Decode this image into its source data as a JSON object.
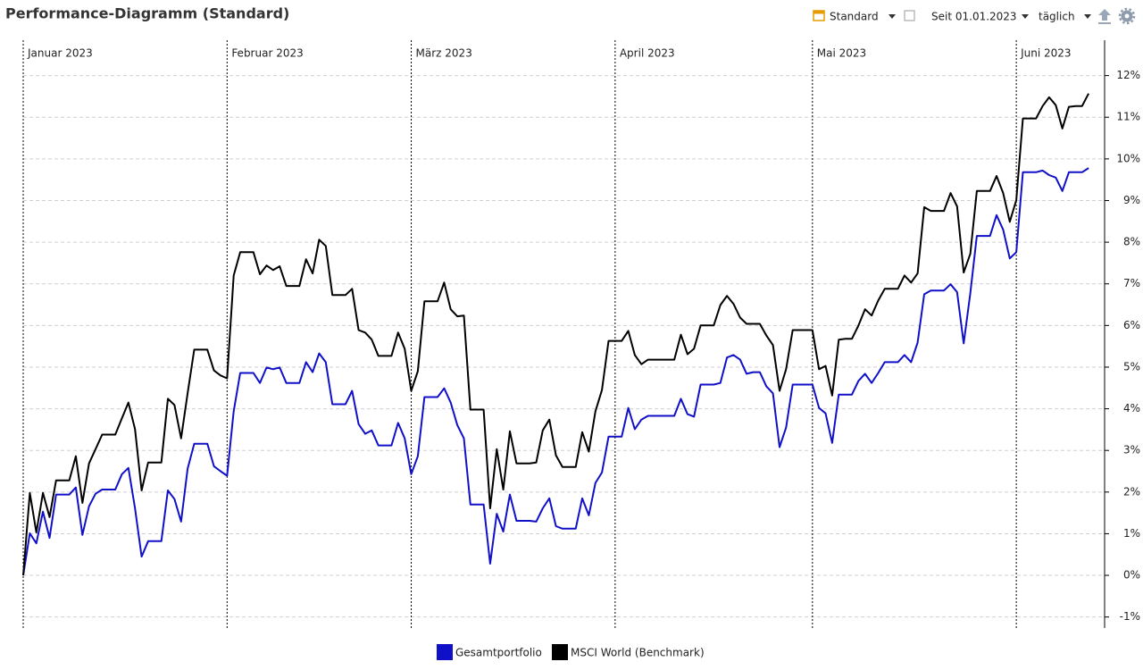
{
  "header": {
    "title": "Performance-Diagramm (Standard)"
  },
  "toolbar": {
    "view": "Standard",
    "period": "Seit 01.01.2023",
    "interval": "täglich"
  },
  "chart_data": {
    "type": "line",
    "categories": [
      "Januar 2023",
      null,
      null,
      null,
      null,
      null,
      null,
      null,
      null,
      null,
      null,
      null,
      null,
      null,
      null,
      null,
      null,
      null,
      null,
      null,
      null,
      null,
      null,
      null,
      null,
      null,
      null,
      null,
      null,
      null,
      null,
      "Februar 2023",
      null,
      null,
      null,
      null,
      null,
      null,
      null,
      null,
      null,
      null,
      null,
      null,
      null,
      null,
      null,
      null,
      null,
      null,
      null,
      null,
      null,
      null,
      null,
      null,
      null,
      null,
      null,
      "März 2023",
      null,
      null,
      null,
      null,
      null,
      null,
      null,
      null,
      null,
      null,
      null,
      null,
      null,
      null,
      null,
      null,
      null,
      null,
      null,
      null,
      null,
      null,
      null,
      null,
      null,
      null,
      null,
      null,
      null,
      null,
      "April 2023",
      null,
      null,
      null,
      null,
      null,
      null,
      null,
      null,
      null,
      null,
      null,
      null,
      null,
      null,
      null,
      null,
      null,
      null,
      null,
      null,
      null,
      null,
      null,
      null,
      null,
      null,
      null,
      null,
      null,
      "Mai 2023",
      null,
      null,
      null,
      null,
      null,
      null,
      null,
      null,
      null,
      null,
      null,
      null,
      null,
      null,
      null,
      null,
      null,
      null,
      null,
      null,
      null,
      null,
      null,
      null,
      null,
      null,
      null,
      null,
      null,
      null,
      "Juni 2023",
      null,
      null,
      null,
      null,
      null,
      null,
      null,
      null,
      null,
      null,
      null
    ],
    "series": [
      {
        "name": "Gesamtportfolio",
        "color": "#1010c8",
        "values": [
          0,
          1.01,
          0.77,
          1.53,
          0.9,
          1.94,
          1.94,
          1.94,
          2.11,
          0.97,
          1.66,
          1.96,
          2.06,
          2.06,
          2.06,
          2.43,
          2.58,
          1.61,
          0.45,
          0.82,
          0.82,
          0.82,
          2.04,
          1.83,
          1.29,
          2.56,
          3.16,
          3.16,
          3.16,
          2.62,
          2.5,
          2.39,
          3.94,
          4.86,
          4.86,
          4.86,
          4.62,
          4.99,
          4.95,
          4.99,
          4.62,
          4.62,
          4.62,
          5.12,
          4.88,
          5.33,
          5.12,
          4.11,
          4.11,
          4.11,
          4.43,
          3.63,
          3.4,
          3.48,
          3.12,
          3.12,
          3.12,
          3.66,
          3.29,
          2.43,
          2.86,
          4.28,
          4.28,
          4.28,
          4.49,
          4.15,
          3.61,
          3.29,
          1.7,
          1.7,
          1.7,
          0.28,
          1.48,
          1.05,
          1.94,
          1.31,
          1.31,
          1.31,
          1.29,
          1.61,
          1.85,
          1.18,
          1.12,
          1.12,
          1.12,
          1.85,
          1.44,
          2.22,
          2.47,
          3.33,
          3.33,
          3.33,
          4.02,
          3.51,
          3.74,
          3.83,
          3.83,
          3.83,
          3.83,
          3.83,
          4.24,
          3.87,
          3.81,
          4.58,
          4.58,
          4.58,
          4.62,
          5.23,
          5.29,
          5.18,
          4.84,
          4.88,
          4.88,
          4.54,
          4.37,
          3.08,
          3.55,
          4.58,
          4.58,
          4.58,
          4.58,
          4.02,
          3.89,
          3.18,
          4.34,
          4.34,
          4.34,
          4.67,
          4.84,
          4.62,
          4.86,
          5.12,
          5.12,
          5.12,
          5.29,
          5.12,
          5.59,
          6.75,
          6.84,
          6.84,
          6.84,
          6.99,
          6.8,
          5.57,
          6.77,
          8.15,
          8.15,
          8.15,
          8.65,
          8.3,
          7.61,
          7.76,
          9.68,
          9.68,
          9.68,
          9.72,
          9.61,
          9.55,
          9.23,
          9.68,
          9.68,
          9.68,
          9.78
        ]
      },
      {
        "name": "MSCI World (Benchmark)",
        "color": "#000000",
        "values": [
          0,
          1.98,
          1.03,
          1.98,
          1.4,
          2.28,
          2.28,
          2.28,
          2.86,
          1.74,
          2.69,
          3.03,
          3.38,
          3.38,
          3.38,
          3.77,
          4.15,
          3.51,
          2.04,
          2.71,
          2.71,
          2.71,
          4.24,
          4.09,
          3.29,
          4.37,
          5.42,
          5.42,
          5.42,
          4.92,
          4.8,
          4.73,
          7.2,
          7.76,
          7.76,
          7.76,
          7.23,
          7.44,
          7.33,
          7.42,
          6.95,
          6.95,
          6.95,
          7.59,
          7.25,
          8.06,
          7.91,
          6.73,
          6.73,
          6.73,
          6.88,
          5.89,
          5.83,
          5.66,
          5.27,
          5.27,
          5.27,
          5.83,
          5.44,
          4.43,
          4.9,
          6.58,
          6.58,
          6.58,
          7.03,
          6.39,
          6.22,
          6.24,
          3.98,
          3.98,
          3.98,
          1.61,
          3.03,
          2.06,
          3.46,
          2.69,
          2.69,
          2.69,
          2.71,
          3.48,
          3.74,
          2.88,
          2.6,
          2.6,
          2.6,
          3.44,
          2.97,
          3.94,
          4.45,
          5.63,
          5.63,
          5.63,
          5.87,
          5.29,
          5.07,
          5.18,
          5.18,
          5.18,
          5.18,
          5.18,
          5.78,
          5.31,
          5.44,
          6.0,
          6.0,
          6.0,
          6.49,
          6.71,
          6.52,
          6.19,
          6.04,
          6.04,
          6.04,
          5.76,
          5.53,
          4.43,
          4.95,
          5.89,
          5.89,
          5.89,
          5.89,
          4.95,
          5.03,
          4.32,
          5.66,
          5.68,
          5.68,
          6.0,
          6.39,
          6.24,
          6.6,
          6.88,
          6.88,
          6.88,
          7.2,
          7.03,
          7.25,
          8.84,
          8.75,
          8.75,
          8.75,
          9.18,
          8.86,
          7.27,
          7.72,
          9.23,
          9.23,
          9.23,
          9.59,
          9.18,
          8.49,
          9.01,
          10.97,
          10.97,
          10.97,
          11.27,
          11.48,
          11.29,
          10.73,
          11.25,
          11.27,
          11.27,
          11.57
        ]
      }
    ],
    "ylim": [
      -1.2,
      12.85
    ],
    "yticks": [
      {
        "value": -1,
        "label": "-1%"
      },
      {
        "value": 0,
        "label": "0%"
      },
      {
        "value": 1,
        "label": "1%"
      },
      {
        "value": 2,
        "label": "2%"
      },
      {
        "value": 3,
        "label": "3%"
      },
      {
        "value": 4,
        "label": "4%"
      },
      {
        "value": 5,
        "label": "5%"
      },
      {
        "value": 6,
        "label": "6%"
      },
      {
        "value": 7,
        "label": "7%"
      },
      {
        "value": 8,
        "label": "8%"
      },
      {
        "value": 9,
        "label": "9%"
      },
      {
        "value": 10,
        "label": "10%"
      },
      {
        "value": 11,
        "label": "11%"
      },
      {
        "value": 12,
        "label": "12%"
      }
    ],
    "grid": true
  }
}
